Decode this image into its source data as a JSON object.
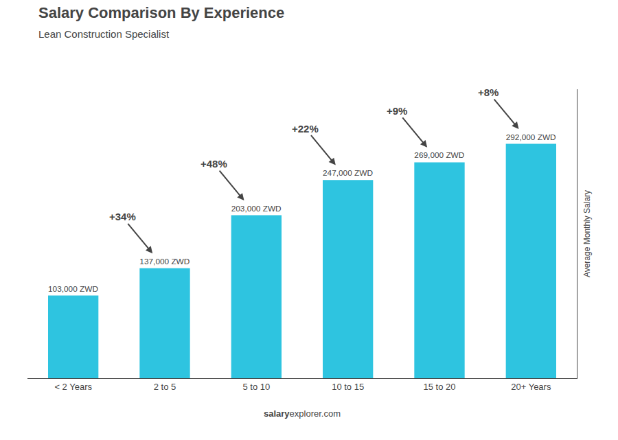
{
  "chart_data": {
    "type": "bar",
    "title": "Salary Comparison By Experience",
    "subtitle": "Lean Construction Specialist",
    "categories": [
      "< 2 Years",
      "2 to 5",
      "5 to 10",
      "10 to 15",
      "15 to 20",
      "20+ Years"
    ],
    "values": [
      103000,
      137000,
      203000,
      247000,
      269000,
      292000
    ],
    "value_labels": [
      "103,000 ZWD",
      "137,000 ZWD",
      "203,000 ZWD",
      "247,000 ZWD",
      "269,000 ZWD",
      "292,000 ZWD"
    ],
    "data_labels": true,
    "color": "#2EC4E0",
    "ylabel": "Average Monthly Salary",
    "ylim": [
      0,
      360000
    ],
    "tick_labels": "x",
    "grid": false,
    "annotations": [
      "+34%",
      "+48%",
      "+22%",
      "+9%",
      "+8%"
    ],
    "footer": [
      "salary",
      "explorer.com"
    ]
  }
}
